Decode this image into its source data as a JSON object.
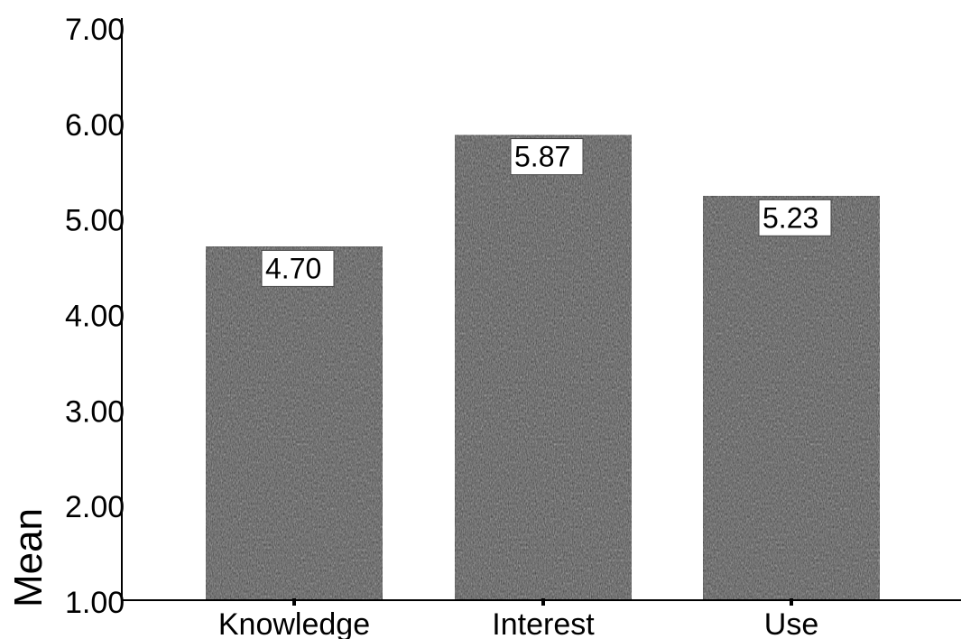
{
  "chart_data": {
    "type": "bar",
    "title": "",
    "xlabel": "",
    "ylabel": "Mean",
    "categories": [
      "Knowledge",
      "Interest",
      "Use"
    ],
    "values": [
      4.7,
      5.87,
      5.23
    ],
    "data_labels": [
      "4.70",
      "5.87",
      "5.23"
    ],
    "ylim": [
      1.0,
      7.0
    ],
    "yticks": [
      1.0,
      2.0,
      3.0,
      4.0,
      5.0,
      6.0,
      7.0
    ],
    "ytick_labels": [
      "1.00",
      "2.00",
      "3.00",
      "4.00",
      "5.00",
      "6.00",
      "7.00"
    ],
    "grid": false,
    "legend": "none",
    "bar_color": "#3a3a3a"
  }
}
